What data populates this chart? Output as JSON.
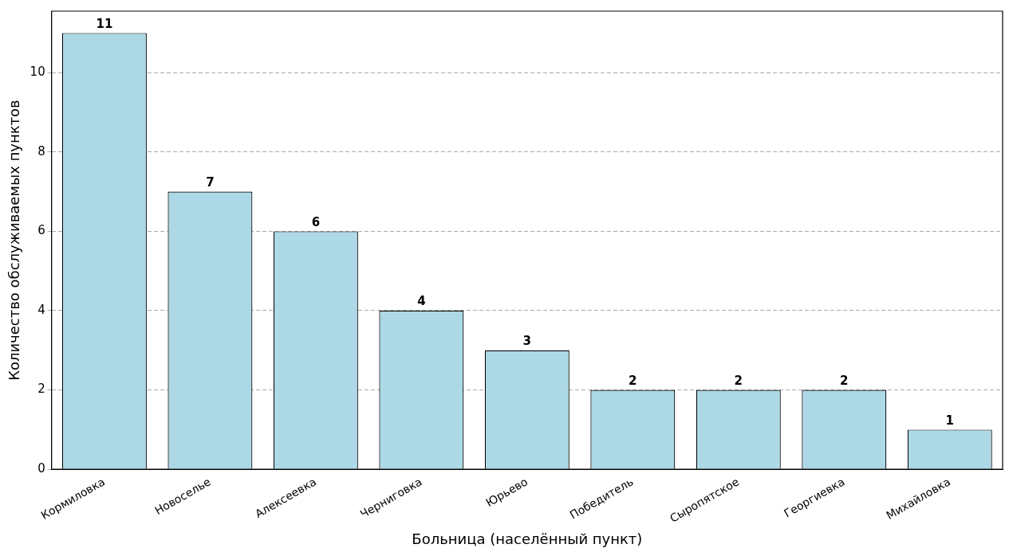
{
  "chart_data": {
    "type": "bar",
    "xlabel": "Больница (населённый пункт)",
    "ylabel": "Количество обслуживаемых пунктов",
    "categories": [
      "Кормиловка",
      "Новоселье",
      "Алексеевка",
      "Черниговка",
      "Юрьево",
      "Победитель",
      "Сыропятское",
      "Георгиевка",
      "Михайловка"
    ],
    "values": [
      11,
      7,
      6,
      4,
      3,
      2,
      2,
      2,
      1
    ],
    "color": "#add8e6",
    "ylim": [
      0,
      11.55
    ],
    "yticks": [
      0,
      2,
      4,
      6,
      8,
      10
    ],
    "grid": "y",
    "data_labels": true,
    "legend": false
  }
}
